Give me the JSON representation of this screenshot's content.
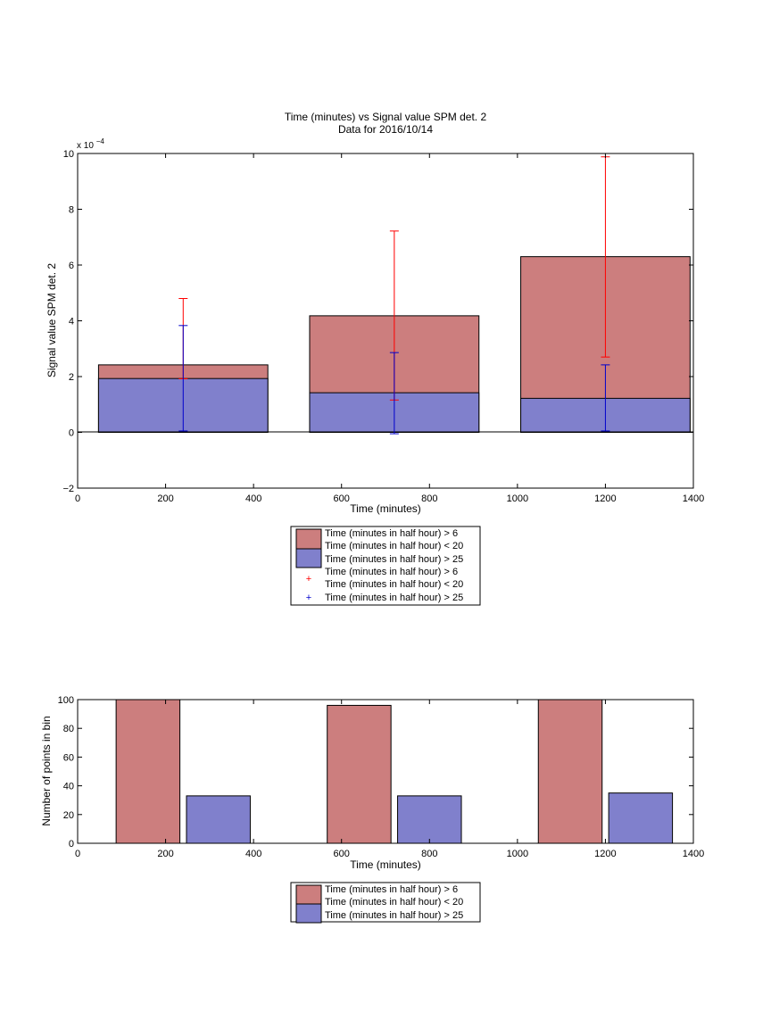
{
  "chart_data": [
    {
      "type": "bar",
      "title": "Time (minutes) vs Signal value SPM det. 2",
      "subtitle": "Data for 2016/10/14",
      "xlabel": "Time (minutes)",
      "ylabel": "Signal value SPM det. 2",
      "y_exponent_label": "x 10",
      "y_exponent_power": "−4",
      "xlim": [
        0,
        1400
      ],
      "ylim": [
        -2,
        10
      ],
      "y_scale": 0.0001,
      "xticks": [
        0,
        200,
        400,
        600,
        800,
        1000,
        1200,
        1400
      ],
      "yticks": [
        -2,
        0,
        2,
        4,
        6,
        8,
        10
      ],
      "grid": false,
      "legend_placement": "below",
      "x": [
        240,
        720,
        1200
      ],
      "bar_width": 385,
      "series": [
        {
          "name": "Time (minutes in half hour) > 6",
          "name_line2": "Time (minutes in half hour) < 20",
          "color": "#CC7E7E",
          "values": [
            2.42,
            4.18,
            6.3
          ],
          "error_low": [
            1.92,
            1.16,
            2.7
          ],
          "error_high": [
            4.8,
            7.22,
            9.88
          ],
          "error_color": "#FF0000",
          "marker": "+"
        },
        {
          "name": "Time (minutes in half hour) > 25",
          "color": "#8080CC",
          "values": [
            1.93,
            1.42,
            1.22
          ],
          "error_low": [
            0.05,
            -0.05,
            0.05
          ],
          "error_high": [
            3.83,
            2.86,
            2.42
          ],
          "error_color": "#0000CC",
          "marker": "+"
        }
      ]
    },
    {
      "type": "bar",
      "xlabel": "Time (minutes)",
      "ylabel": "Number of points in bin",
      "xlim": [
        0,
        1400
      ],
      "ylim": [
        0,
        100
      ],
      "xticks": [
        0,
        200,
        400,
        600,
        800,
        1000,
        1200,
        1400
      ],
      "yticks": [
        0,
        20,
        40,
        60,
        80,
        100
      ],
      "grid": false,
      "legend_placement": "below",
      "bar_width": 145,
      "series": [
        {
          "name": "Time (minutes in half hour) > 6",
          "name_line2": "Time (minutes in half hour) < 20",
          "color": "#CC7E7E",
          "x": [
            160,
            640,
            1120
          ],
          "values": [
            100,
            96,
            100
          ]
        },
        {
          "name": "Time (minutes in half hour) > 25",
          "color": "#8080CC",
          "x": [
            320,
            800,
            1280
          ],
          "values": [
            33,
            33,
            35
          ]
        }
      ]
    }
  ]
}
